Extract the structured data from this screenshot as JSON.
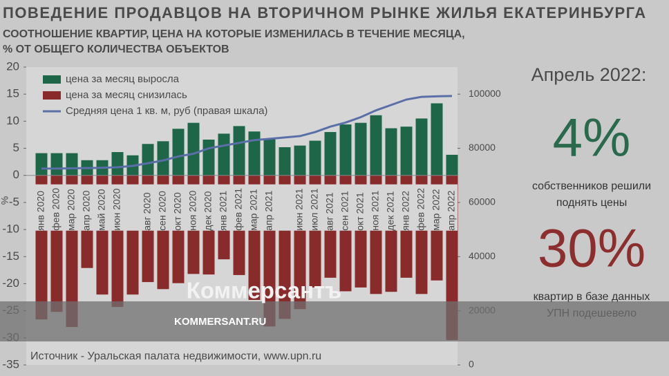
{
  "chart_data": {
    "type": "bar",
    "title": "ПОВЕДЕНИЕ ПРОДАВЦОВ НА ВТОРИЧНОМ РЫНКЕ ЖИЛЬЯ ЕКАТЕРИНБУРГА",
    "subtitle": [
      "СООТНОШЕНИЕ КВАРТИР, ЦЕНА НА КОТОРЫЕ ИЗМЕНИЛАСЬ В ТЕЧЕНИЕ МЕСЯЦА,",
      "% ОТ ОБЩЕГО КОЛИЧЕСТВА ОБЪЕКТОВ"
    ],
    "ylabel": "%",
    "source": "Источник - Уральская палата недвижимости, www.upn.ru",
    "categories": [
      "янв 2020",
      "фев 2020",
      "мар 2020",
      "апр 2020",
      "май 2020",
      "июн 2020",
      null,
      "авг 2020",
      "сен 2020",
      "окт 2020",
      "ноя 2020",
      "дек 2020",
      "янв 2021",
      "фев 2021",
      "мар 2021",
      "апр 2021",
      null,
      "июн 2021",
      "июл 2021",
      "авг 2021",
      "сен 2021",
      "окт 2021",
      "ноя 2021",
      "дек 2021",
      "янв 2022",
      "фев 2022",
      "мар 2022",
      "апр 2022"
    ],
    "series": [
      {
        "name": "цена за месяц выросла",
        "type": "bar",
        "color": "#1d6647",
        "values": [
          4.1,
          4.1,
          4.1,
          2.8,
          2.8,
          4.3,
          3.7,
          5.8,
          6.3,
          8.6,
          9.7,
          6.6,
          7.7,
          9.1,
          8.1,
          6.8,
          5.2,
          5.5,
          6.4,
          8.0,
          9.4,
          9.7,
          11.1,
          8.7,
          9.0,
          10.5,
          13.3,
          3.8
        ]
      },
      {
        "name": "цена за месяц снизилась",
        "type": "bar",
        "color": "#8a2b2b",
        "values": [
          -26.6,
          -25.2,
          -28.0,
          -17.1,
          -22.0,
          -24.3,
          -22.0,
          -19.7,
          -21.0,
          -19.9,
          -18.2,
          -18.3,
          -15.5,
          -18.4,
          -23.0,
          -27.9,
          -26.5,
          -24.7,
          -20.7,
          -18.9,
          -21.4,
          -20.7,
          -21.9,
          -21.5,
          -18.9,
          -21.9,
          -19.4,
          -30.4
        ]
      },
      {
        "name": "Средняя цена 1 кв. м, руб (правая шкала)",
        "type": "line",
        "axis": "y2",
        "color": "#5a6ea8",
        "values": [
          72500,
          72500,
          72600,
          72700,
          72800,
          73000,
          73500,
          74500,
          75500,
          77000,
          78000,
          80000,
          81000,
          82000,
          83000,
          83500,
          84000,
          84500,
          86000,
          88000,
          89500,
          91500,
          94000,
          96000,
          98000,
          99000,
          99200,
          99300
        ]
      }
    ],
    "ylim": [
      -35,
      20
    ],
    "yticks": [
      -35,
      -30,
      -25,
      -20,
      -15,
      -10,
      -5,
      0,
      5,
      10,
      15,
      20
    ],
    "y2lim": [
      0,
      110000
    ],
    "y2ticks": [
      0,
      20000,
      40000,
      60000,
      80000,
      100000
    ],
    "legend": "top-left"
  },
  "panel": {
    "heading": "Апрель 2022:",
    "stats": [
      {
        "value": "4%",
        "text": [
          "собственников решили",
          "поднять цены"
        ],
        "color": "#2a6a4c"
      },
      {
        "value": "30%",
        "text": [
          "квартир в базе данных",
          "УПН подешевело"
        ],
        "color": "#8c2e2e"
      }
    ]
  },
  "watermark": {
    "logo": "Коммерсантъ",
    "url": "KOMMERSANT.RU"
  }
}
